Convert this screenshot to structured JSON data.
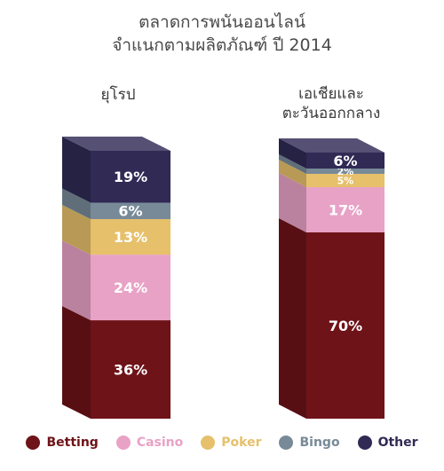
{
  "chart_data": {
    "type": "bar",
    "stacked": true,
    "title": "ตลาดการพนันออนไลน์",
    "subtitle": "จำแนกตามผลิตภัณฑ์ ปี 2014",
    "categories": [
      "ยุโรป",
      "เอเชียและ ตะวันออกกลาง"
    ],
    "category_lines": [
      [
        "ยุโรป"
      ],
      [
        "เอเชียและ",
        "ตะวันออกกลาง"
      ]
    ],
    "series": [
      {
        "name": "Betting",
        "values": [
          36,
          70
        ],
        "labels": [
          "36%",
          "70%"
        ],
        "color": "#6e1318"
      },
      {
        "name": "Casino",
        "values": [
          24,
          17
        ],
        "labels": [
          "24%",
          "17%"
        ],
        "color": "#e8a2c6"
      },
      {
        "name": "Poker",
        "values": [
          13,
          5
        ],
        "labels": [
          "13%",
          "5%"
        ],
        "color": "#e6c06b"
      },
      {
        "name": "Bingo",
        "values": [
          6,
          2
        ],
        "labels": [
          "6%",
          "2%"
        ],
        "color": "#788a98"
      },
      {
        "name": "Other",
        "values": [
          19,
          6
        ],
        "labels": [
          "19%",
          "6%"
        ],
        "color": "#302a55"
      }
    ],
    "unit": "%",
    "legend_position": "bottom",
    "grid": false
  }
}
